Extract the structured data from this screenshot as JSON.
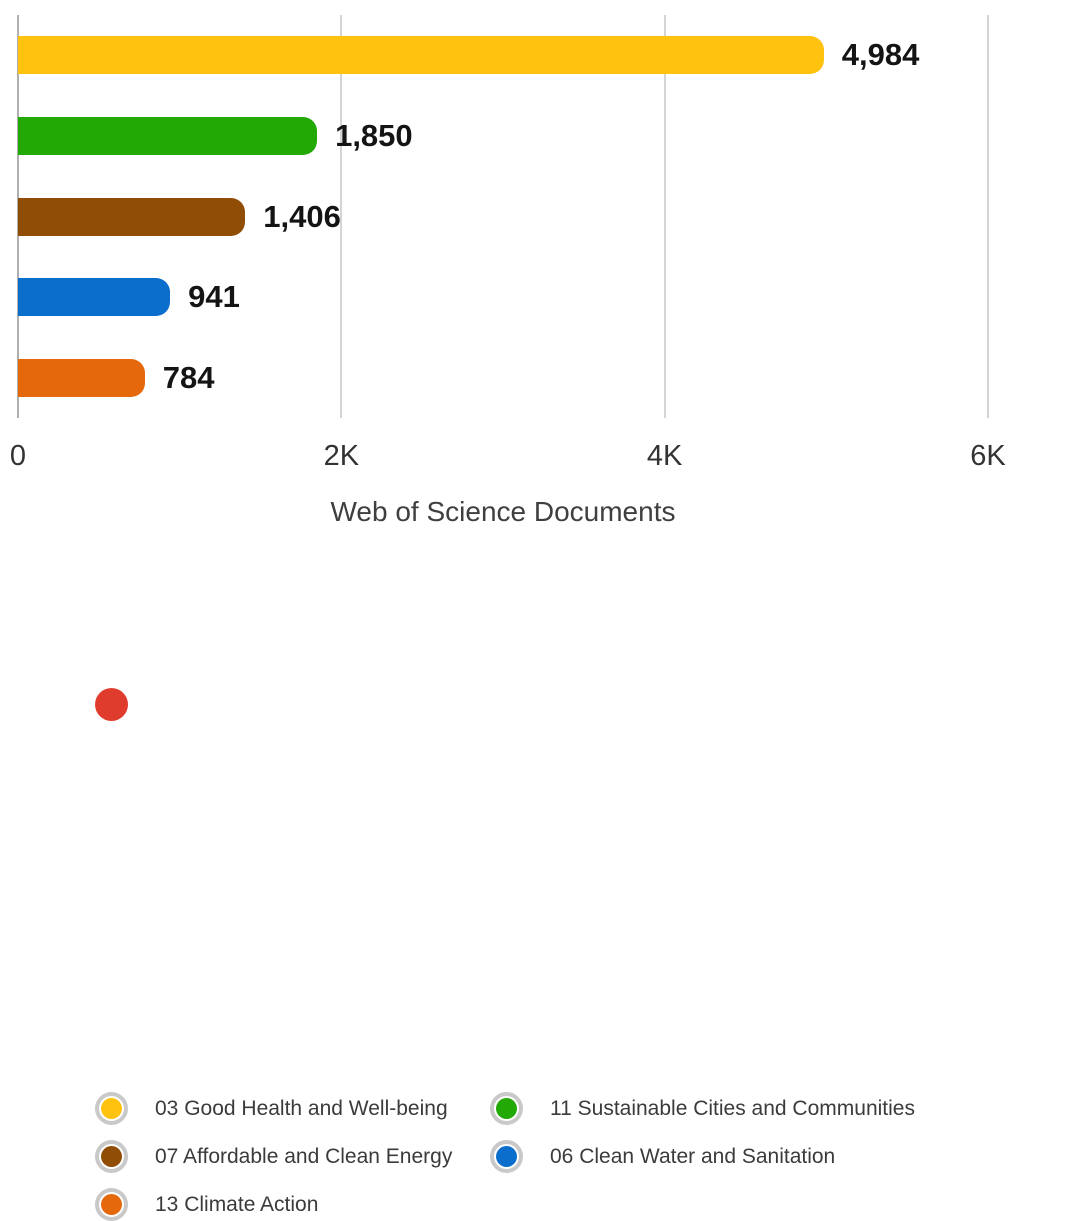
{
  "chart_data": {
    "type": "bar",
    "orientation": "horizontal",
    "title": "",
    "xlabel": "Web of Science Documents",
    "ylabel": "",
    "xlim": [
      0,
      6000
    ],
    "grid": "vertical",
    "legend_position": "bottom",
    "x_ticks": [
      {
        "label": "0",
        "value": 0
      },
      {
        "label": "2K",
        "value": 2000
      },
      {
        "label": "4K",
        "value": 4000
      },
      {
        "label": "6K",
        "value": 6000
      }
    ],
    "categories": [
      "03 Good Health and Well-being",
      "11 Sustainable Cities and Communities",
      "07 Affordable and Clean Energy",
      "06 Clean Water and Sanitation",
      "13 Climate Action"
    ],
    "values": [
      4984,
      1850,
      1406,
      941,
      784
    ],
    "value_labels": [
      "4,984",
      "1,850",
      "1,406",
      "941",
      "784"
    ],
    "colors": [
      "#FFC20E",
      "#22A906",
      "#8F4D06",
      "#0B6ECD",
      "#E5690A"
    ]
  },
  "legend": {
    "items": [
      {
        "label": "03 Good Health and Well-being",
        "color": "#FFC20E"
      },
      {
        "label": "11 Sustainable Cities and Communities",
        "color": "#22A906"
      },
      {
        "label": "07 Affordable and Clean Energy",
        "color": "#8F4D06"
      },
      {
        "label": "06 Clean Water and Sanitation",
        "color": "#0B6ECD"
      },
      {
        "label": "13 Climate Action",
        "color": "#E5690A"
      }
    ],
    "partial_next_item_color": "#E03C2D"
  },
  "colors": {
    "background": "#FFFFFF",
    "gridline": "#D4D4D4",
    "axis_line": "#B0B0B0",
    "legend_ring": "#C9C9C9",
    "value_label_text": "#141414",
    "axis_text": "#333333",
    "axis_title_text": "#3F3F3F",
    "legend_text": "#3B3B3B"
  }
}
